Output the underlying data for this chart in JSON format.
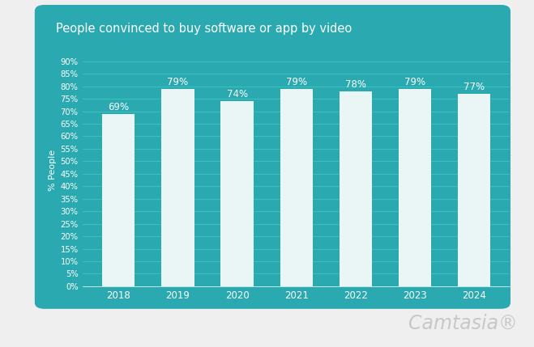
{
  "title": "People convinced to buy software or app by video",
  "categories": [
    "2018",
    "2019",
    "2020",
    "2021",
    "2022",
    "2023",
    "2024"
  ],
  "values": [
    69,
    79,
    74,
    79,
    78,
    79,
    77
  ],
  "bar_color": "#eaf5f5",
  "bg_color": "#2aaab0",
  "outer_bg_color": "#efefef",
  "ylabel": "% People",
  "yticks": [
    0,
    5,
    10,
    15,
    20,
    25,
    30,
    35,
    40,
    45,
    50,
    55,
    60,
    65,
    70,
    75,
    80,
    85,
    90
  ],
  "ylim": [
    0,
    93
  ],
  "title_color": "#ffffff",
  "tick_color": "#ffffff",
  "label_color": "#ffffff",
  "bar_label_color": "#ffffff",
  "grid_color": "#3abfc0",
  "watermark": "Camtasia®",
  "watermark_color": "#c8c8c8"
}
